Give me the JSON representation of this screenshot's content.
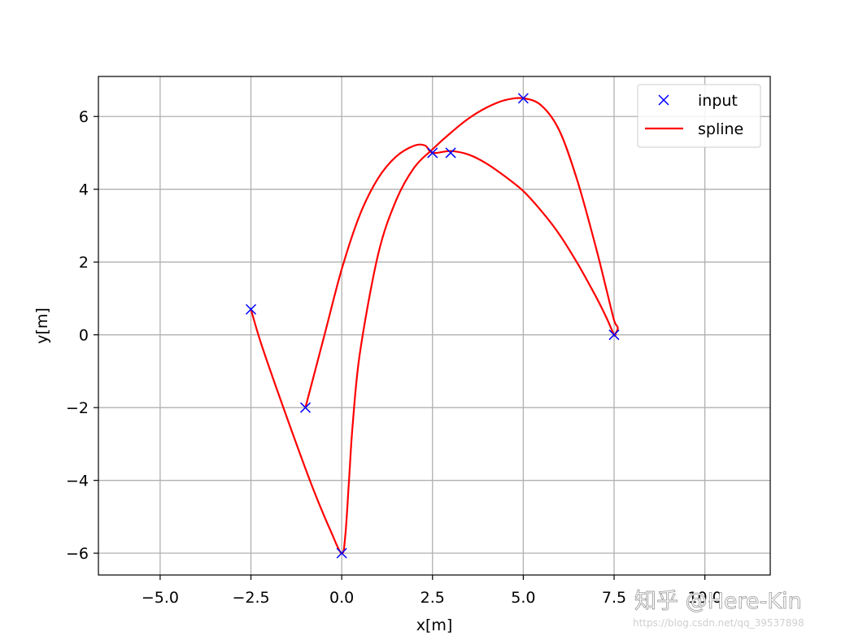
{
  "chart_data": {
    "type": "line",
    "xlabel": "x[m]",
    "ylabel": "y[m]",
    "xlim": [
      -6.7,
      11.8
    ],
    "ylim": [
      -6.6,
      7.1
    ],
    "xticks": [
      -5.0,
      -2.5,
      0.0,
      2.5,
      5.0,
      7.5,
      10.0
    ],
    "xtick_labels": [
      "−5.0",
      "−2.5",
      "0.0",
      "2.5",
      "5.0",
      "7.5",
      "10.0"
    ],
    "yticks": [
      -6,
      -4,
      -2,
      0,
      2,
      4,
      6
    ],
    "ytick_labels": [
      "−6",
      "−4",
      "−2",
      "0",
      "2",
      "4",
      "6"
    ],
    "grid": true,
    "legend_position": "top-right",
    "series": [
      {
        "name": "input",
        "style": "markers-x",
        "color": "#0000ff",
        "x": [
          -2.5,
          0.0,
          2.5,
          5.0,
          7.5,
          3.0,
          -1.0
        ],
        "y": [
          0.7,
          -6.0,
          5.0,
          6.5,
          0.0,
          5.0,
          -2.0
        ]
      },
      {
        "name": "spline",
        "style": "line",
        "color": "#ff0000",
        "x": [
          -2.5,
          -2.2,
          -1.5,
          -0.8,
          -0.3,
          0.0,
          0.1,
          0.2,
          0.3,
          0.5,
          1.0,
          1.5,
          2.0,
          2.5,
          3.0,
          3.5,
          4.0,
          4.5,
          5.0,
          5.5,
          6.0,
          6.5,
          7.0,
          7.3,
          7.5,
          7.6,
          7.55,
          7.5,
          7.3,
          7.0,
          6.5,
          6.0,
          5.5,
          5.0,
          4.5,
          4.0,
          3.5,
          3.0,
          2.5,
          2.3,
          2.0,
          1.5,
          1.0,
          0.5,
          0.0,
          -0.5,
          -1.0
        ],
        "y": [
          0.7,
          -0.3,
          -2.3,
          -4.2,
          -5.4,
          -6.0,
          -5.5,
          -4.0,
          -2.5,
          -0.5,
          2.2,
          3.7,
          4.6,
          5.1,
          5.55,
          5.95,
          6.25,
          6.45,
          6.5,
          6.3,
          5.6,
          4.2,
          2.4,
          1.2,
          0.4,
          0.2,
          0.05,
          0.0,
          0.45,
          1.05,
          1.95,
          2.75,
          3.4,
          3.95,
          4.35,
          4.7,
          4.95,
          5.05,
          5.0,
          5.2,
          5.2,
          4.9,
          4.3,
          3.3,
          1.8,
          -0.1,
          -2.0
        ]
      }
    ]
  },
  "watermark": {
    "brand_text": "知乎 @Here-Kin",
    "url_text": "https://blog.csdn.net/qq_39537898"
  }
}
